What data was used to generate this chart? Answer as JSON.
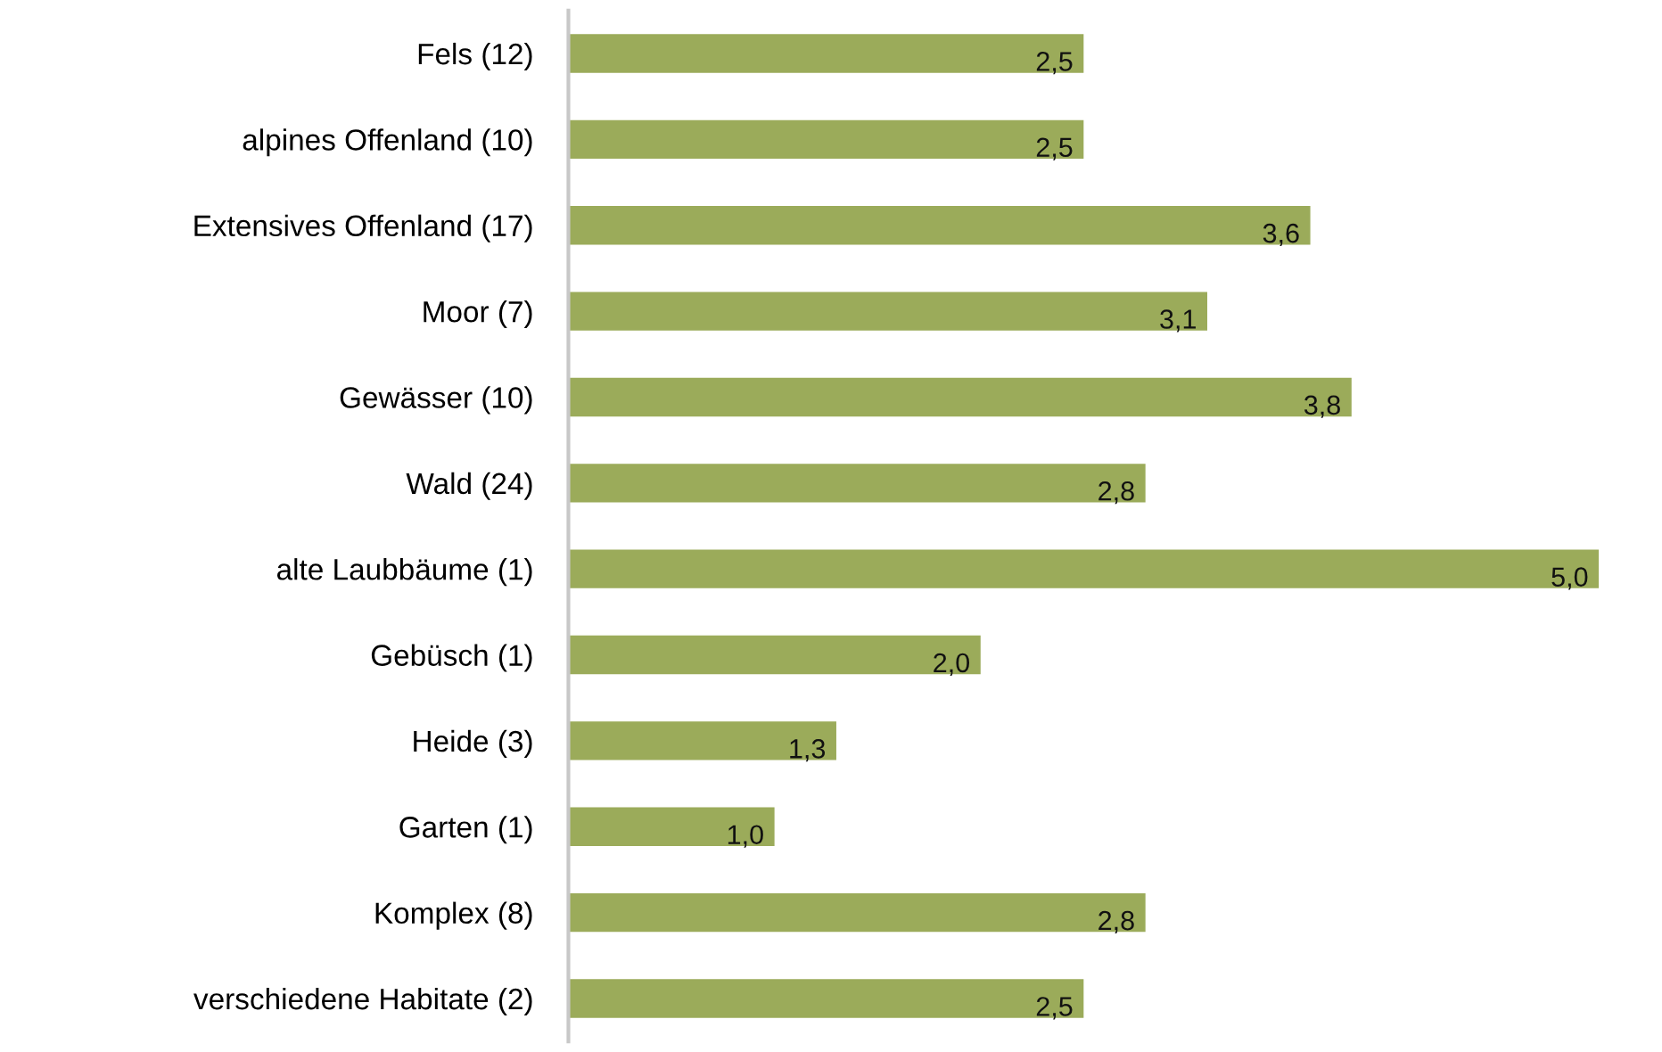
{
  "chart_data": {
    "type": "bar",
    "orientation": "horizontal",
    "categories": [
      "Fels (12)",
      "alpines Offenland (10)",
      "Extensives Offenland (17)",
      "Moor (7)",
      "Gewässer (10)",
      "Wald (24)",
      "alte Laubbäume (1)",
      "Gebüsch (1)",
      "Heide (3)",
      "Garten (1)",
      "Komplex (8)",
      "verschiedene Habitate (2)"
    ],
    "values": [
      2.5,
      2.5,
      3.6,
      3.1,
      3.8,
      2.8,
      5.0,
      2.0,
      1.3,
      1.0,
      2.8,
      2.5
    ],
    "value_labels": [
      "2,5",
      "2,5",
      "3,6",
      "3,1",
      "3,8",
      "2,8",
      "5,0",
      "2,0",
      "1,3",
      "1,0",
      "2,8",
      "2,5"
    ],
    "color": "#9bab5a",
    "tick_labels": "y",
    "grid": false
  }
}
